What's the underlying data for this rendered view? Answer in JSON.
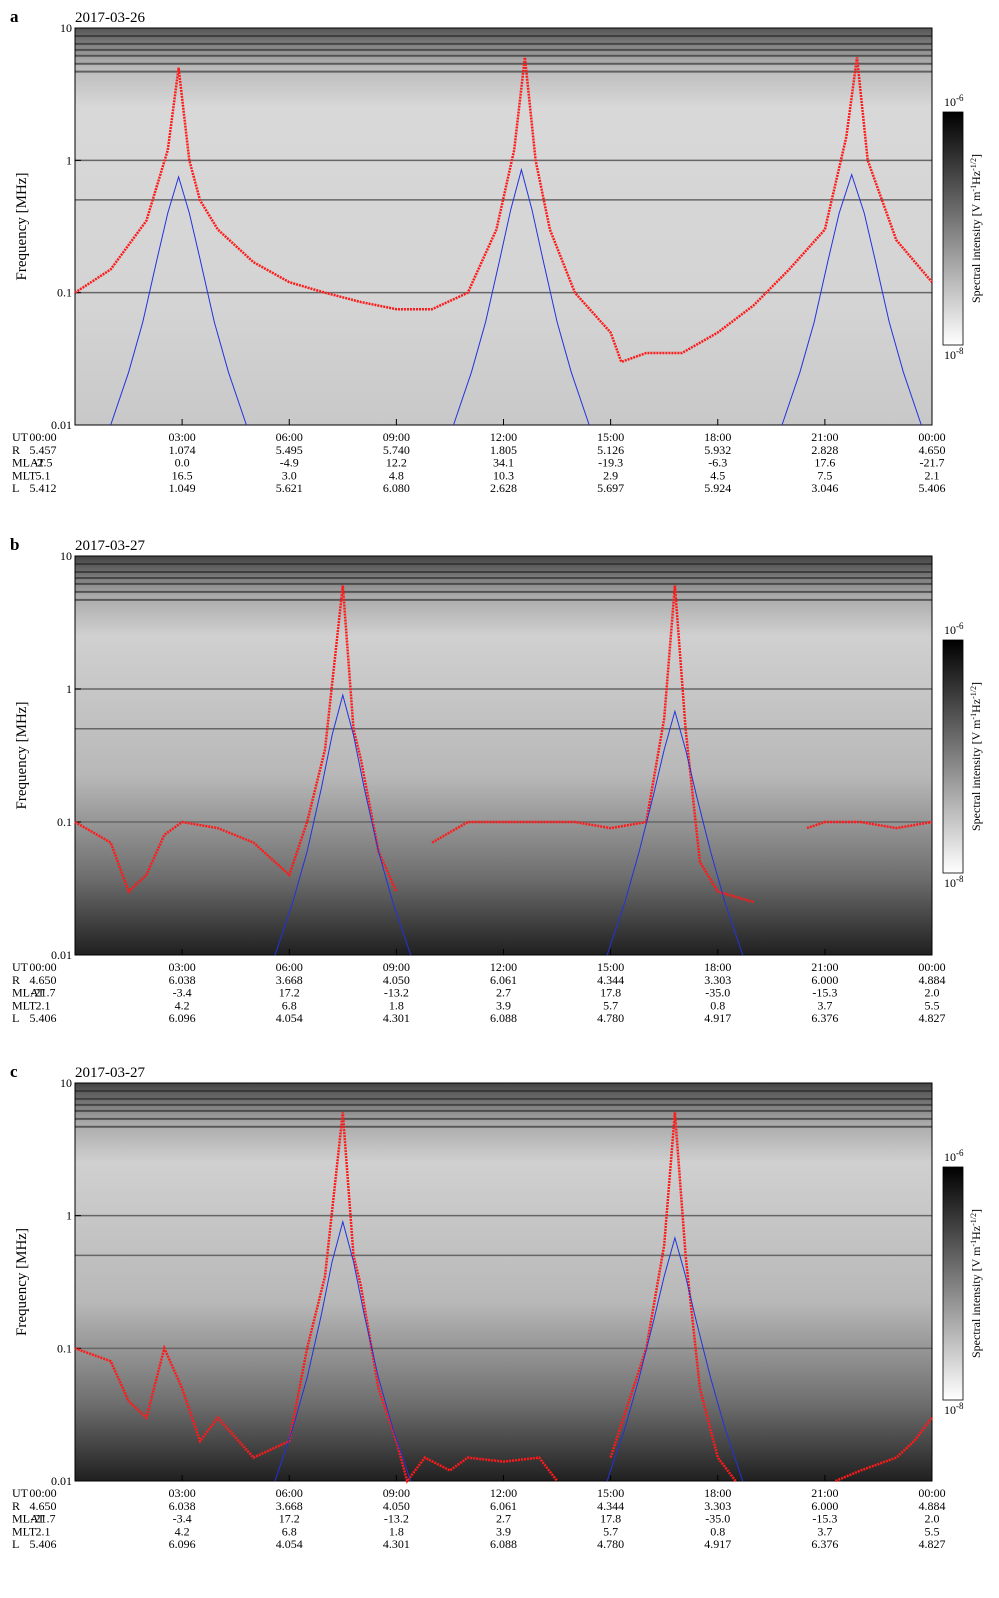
{
  "chart_data": [
    {
      "type": "line",
      "panel": "a",
      "title": "2017-03-26",
      "ylabel": "Frequency [MHz]",
      "yscale": "log",
      "xlim": [
        0,
        24
      ],
      "xticks": [
        {
          "value": 0,
          "label": "00:00"
        },
        {
          "value": 3,
          "label": "03:00"
        },
        {
          "value": 6,
          "label": "06:00"
        },
        {
          "value": 9,
          "label": "09:00"
        },
        {
          "value": 12,
          "label": "12:00"
        },
        {
          "value": 15,
          "label": "15:00"
        },
        {
          "value": 18,
          "label": "18:00"
        },
        {
          "value": 21,
          "label": "21:00"
        },
        {
          "value": 24,
          "label": "00:00"
        }
      ],
      "ylim": [
        0.01,
        10
      ],
      "yticks": [
        0.01,
        0.1,
        1,
        10
      ],
      "series": [
        {
          "color": "#ff1a1a",
          "x": [
            0,
            1,
            2,
            2.6,
            2.9,
            3.2,
            3.5,
            4,
            5,
            6,
            7,
            8,
            9,
            10,
            11,
            11.8,
            12.3,
            12.6,
            12.9,
            13.3,
            14,
            15,
            15.3,
            16,
            17,
            18,
            19,
            20,
            21,
            21.6,
            21.9,
            22.2,
            23,
            24
          ],
          "values": [
            0.1,
            0.15,
            0.35,
            1.2,
            5,
            1,
            0.5,
            0.3,
            0.17,
            0.12,
            0.1,
            0.085,
            0.075,
            0.075,
            0.1,
            0.3,
            1.2,
            6,
            1,
            0.3,
            0.1,
            0.05,
            0.03,
            0.035,
            0.035,
            0.05,
            0.08,
            0.15,
            0.3,
            1.5,
            6,
            1,
            0.25,
            0.12
          ]
        },
        {
          "color": "#2233dd",
          "x": [
            1.0,
            1.5,
            1.9,
            2.3,
            2.6,
            2.9,
            3.2,
            3.5,
            3.9,
            4.3,
            4.8,
            9,
            10.6,
            11.1,
            11.5,
            11.9,
            12.2,
            12.5,
            12.8,
            13.1,
            13.5,
            13.9,
            14.4,
            18,
            19.8,
            20.3,
            20.7,
            21.1,
            21.4,
            21.75,
            22.1,
            22.4,
            22.8,
            23.2,
            23.7
          ],
          "values": [
            0.01,
            0.025,
            0.06,
            0.18,
            0.4,
            0.75,
            0.4,
            0.18,
            0.06,
            0.025,
            0.01,
            null,
            0.01,
            0.025,
            0.06,
            0.18,
            0.42,
            0.85,
            0.42,
            0.18,
            0.06,
            0.025,
            0.01,
            null,
            0.01,
            0.025,
            0.06,
            0.18,
            0.4,
            0.78,
            0.4,
            0.18,
            0.06,
            0.025,
            0.01
          ]
        }
      ],
      "ephemeris": {
        "labels": [
          "UT",
          "R",
          "MLAT",
          "MLT",
          "L"
        ],
        "rows": [
          [
            "5.457",
            "1.074",
            "5.495",
            "5.740",
            "1.805",
            "5.126",
            "5.932",
            "2.828",
            "4.650"
          ],
          [
            "-2.5",
            "0.0",
            "-4.9",
            "12.2",
            "34.1",
            "-19.3",
            "-6.3",
            "17.6",
            "-21.7"
          ],
          [
            "5.1",
            "16.5",
            "3.0",
            "4.8",
            "10.3",
            "2.9",
            "4.5",
            "7.5",
            "2.1"
          ],
          [
            "5.412",
            "1.049",
            "5.621",
            "6.080",
            "2.628",
            "5.697",
            "5.924",
            "3.046",
            "5.406"
          ]
        ]
      },
      "colorbar": {
        "ticks": [
          {
            "base": "10",
            "exponent": "-6"
          },
          {
            "base": "10",
            "exponent": "-8"
          }
        ],
        "label": [
          {
            "text": "Spectral intensity [V m"
          },
          {
            "sup": "-1"
          },
          {
            "text": "Hz"
          },
          {
            "sup": "-1/2"
          },
          {
            "text": "]"
          }
        ]
      }
    },
    {
      "type": "line",
      "panel": "b",
      "title": "2017-03-27",
      "ylabel": "Frequency [MHz]",
      "yscale": "log",
      "xlim": [
        0,
        24
      ],
      "xticks": [
        {
          "value": 0,
          "label": "00:00"
        },
        {
          "value": 3,
          "label": "03:00"
        },
        {
          "value": 6,
          "label": "06:00"
        },
        {
          "value": 9,
          "label": "09:00"
        },
        {
          "value": 12,
          "label": "12:00"
        },
        {
          "value": 15,
          "label": "15:00"
        },
        {
          "value": 18,
          "label": "18:00"
        },
        {
          "value": 21,
          "label": "21:00"
        },
        {
          "value": 24,
          "label": "00:00"
        }
      ],
      "ylim": [
        0.01,
        10
      ],
      "yticks": [
        0.01,
        0.1,
        1,
        10
      ],
      "series": [
        {
          "color": "#ff1a1a",
          "x": [
            0,
            1,
            1.5,
            2,
            2.5,
            3,
            4,
            5,
            6,
            6.5,
            7,
            7.5,
            7.8,
            8,
            8.5,
            9,
            9.5,
            10,
            11,
            12,
            13,
            14,
            15,
            16,
            16.5,
            16.8,
            17.1,
            17.5,
            18,
            19,
            19.8,
            20.5,
            21,
            22,
            23,
            24
          ],
          "values": [
            0.1,
            0.07,
            0.03,
            0.04,
            0.08,
            0.1,
            0.09,
            0.07,
            0.04,
            0.1,
            0.35,
            6,
            0.5,
            0.3,
            0.06,
            0.03,
            null,
            0.07,
            0.1,
            0.1,
            0.1,
            0.1,
            0.09,
            0.1,
            0.6,
            6,
            0.5,
            0.05,
            0.03,
            0.025,
            null,
            0.09,
            0.1,
            0.1,
            0.09,
            0.1
          ]
        },
        {
          "color": "#2233dd",
          "x": [
            5.6,
            6.1,
            6.5,
            6.9,
            7.2,
            7.5,
            7.8,
            8.1,
            8.5,
            8.9,
            9.4,
            12,
            14.9,
            15.4,
            15.8,
            16.2,
            16.5,
            16.8,
            17.1,
            17.4,
            17.8,
            18.2,
            18.7
          ],
          "values": [
            0.01,
            0.025,
            0.06,
            0.18,
            0.45,
            0.9,
            0.45,
            0.18,
            0.06,
            0.025,
            0.01,
            null,
            0.01,
            0.025,
            0.06,
            0.16,
            0.35,
            0.68,
            0.35,
            0.16,
            0.06,
            0.025,
            0.01
          ]
        }
      ],
      "ephemeris": {
        "labels": [
          "UT",
          "R",
          "MLAT",
          "MLT",
          "L"
        ],
        "rows": [
          [
            "4.650",
            "6.038",
            "3.668",
            "4.050",
            "6.061",
            "4.344",
            "3.303",
            "6.000",
            "4.884"
          ],
          [
            "-21.7",
            "-3.4",
            "17.2",
            "-13.2",
            "2.7",
            "17.8",
            "-35.0",
            "-15.3",
            "2.0"
          ],
          [
            "2.1",
            "4.2",
            "6.8",
            "1.8",
            "3.9",
            "5.7",
            "0.8",
            "3.7",
            "5.5"
          ],
          [
            "5.406",
            "6.096",
            "4.054",
            "4.301",
            "6.088",
            "4.780",
            "4.917",
            "6.376",
            "4.827"
          ]
        ]
      },
      "colorbar": {
        "ticks": [
          {
            "base": "10",
            "exponent": "-6"
          },
          {
            "base": "10",
            "exponent": "-8"
          }
        ],
        "label": [
          {
            "text": "Spectral intensity [V m"
          },
          {
            "sup": "-1"
          },
          {
            "text": "Hz"
          },
          {
            "sup": "-1/2"
          },
          {
            "text": "]"
          }
        ]
      }
    },
    {
      "type": "line",
      "panel": "c",
      "title": "2017-03-27",
      "ylabel": "Frequency [MHz]",
      "yscale": "log",
      "xlim": [
        0,
        24
      ],
      "xticks": [
        {
          "value": 0,
          "label": "00:00"
        },
        {
          "value": 3,
          "label": "03:00"
        },
        {
          "value": 6,
          "label": "06:00"
        },
        {
          "value": 9,
          "label": "09:00"
        },
        {
          "value": 12,
          "label": "12:00"
        },
        {
          "value": 15,
          "label": "15:00"
        },
        {
          "value": 18,
          "label": "18:00"
        },
        {
          "value": 21,
          "label": "21:00"
        },
        {
          "value": 24,
          "label": "00:00"
        }
      ],
      "ylim": [
        0.01,
        10
      ],
      "yticks": [
        0.01,
        0.1,
        1,
        10
      ],
      "series": [
        {
          "color": "#ff1a1a",
          "x": [
            0,
            1,
            1.5,
            2,
            2.5,
            3,
            3.5,
            4,
            5,
            6,
            6.5,
            7,
            7.5,
            7.8,
            8,
            8.5,
            9,
            9.3,
            9.8,
            10.5,
            11,
            12,
            13,
            13.5,
            14,
            15,
            16,
            16.5,
            16.8,
            17.1,
            17.5,
            18,
            18.5,
            20,
            21.3,
            22,
            23,
            23.5,
            24
          ],
          "values": [
            0.1,
            0.08,
            0.04,
            0.03,
            0.1,
            0.05,
            0.02,
            0.03,
            0.015,
            0.02,
            0.1,
            0.35,
            6,
            0.5,
            0.3,
            0.05,
            0.02,
            0.01,
            0.015,
            0.012,
            0.015,
            0.014,
            0.015,
            0.01,
            null,
            0.015,
            0.1,
            0.6,
            6,
            0.5,
            0.05,
            0.015,
            0.01,
            null,
            0.01,
            0.012,
            0.015,
            0.02,
            0.03
          ]
        },
        {
          "color": "#2233dd",
          "x": [
            5.6,
            6.1,
            6.5,
            6.9,
            7.2,
            7.5,
            7.8,
            8.1,
            8.5,
            8.9,
            9.4,
            12,
            14.9,
            15.4,
            15.8,
            16.2,
            16.5,
            16.8,
            17.1,
            17.4,
            17.8,
            18.2,
            18.7
          ],
          "values": [
            0.01,
            0.025,
            0.06,
            0.18,
            0.45,
            0.9,
            0.45,
            0.18,
            0.06,
            0.025,
            0.01,
            null,
            0.01,
            0.025,
            0.06,
            0.16,
            0.35,
            0.68,
            0.35,
            0.16,
            0.06,
            0.025,
            0.01
          ]
        }
      ],
      "ephemeris": {
        "labels": [
          "UT",
          "R",
          "MLAT",
          "MLT",
          "L"
        ],
        "rows": [
          [
            "4.650",
            "6.038",
            "3.668",
            "4.050",
            "6.061",
            "4.344",
            "3.303",
            "6.000",
            "4.884"
          ],
          [
            "-21.7",
            "-3.4",
            "17.2",
            "-13.2",
            "2.7",
            "17.8",
            "-35.0",
            "-15.3",
            "2.0"
          ],
          [
            "2.1",
            "4.2",
            "6.8",
            "1.8",
            "3.9",
            "5.7",
            "0.8",
            "3.7",
            "5.5"
          ],
          [
            "5.406",
            "6.096",
            "4.054",
            "4.301",
            "6.088",
            "4.780",
            "4.917",
            "6.376",
            "4.827"
          ]
        ]
      },
      "colorbar": {
        "ticks": [
          {
            "base": "10",
            "exponent": "-6"
          },
          {
            "base": "10",
            "exponent": "-8"
          }
        ],
        "label": [
          {
            "text": "Spectral intensity [V m"
          },
          {
            "sup": "-1"
          },
          {
            "text": "Hz"
          },
          {
            "sup": "-1/2"
          },
          {
            "text": "]"
          }
        ]
      }
    }
  ]
}
